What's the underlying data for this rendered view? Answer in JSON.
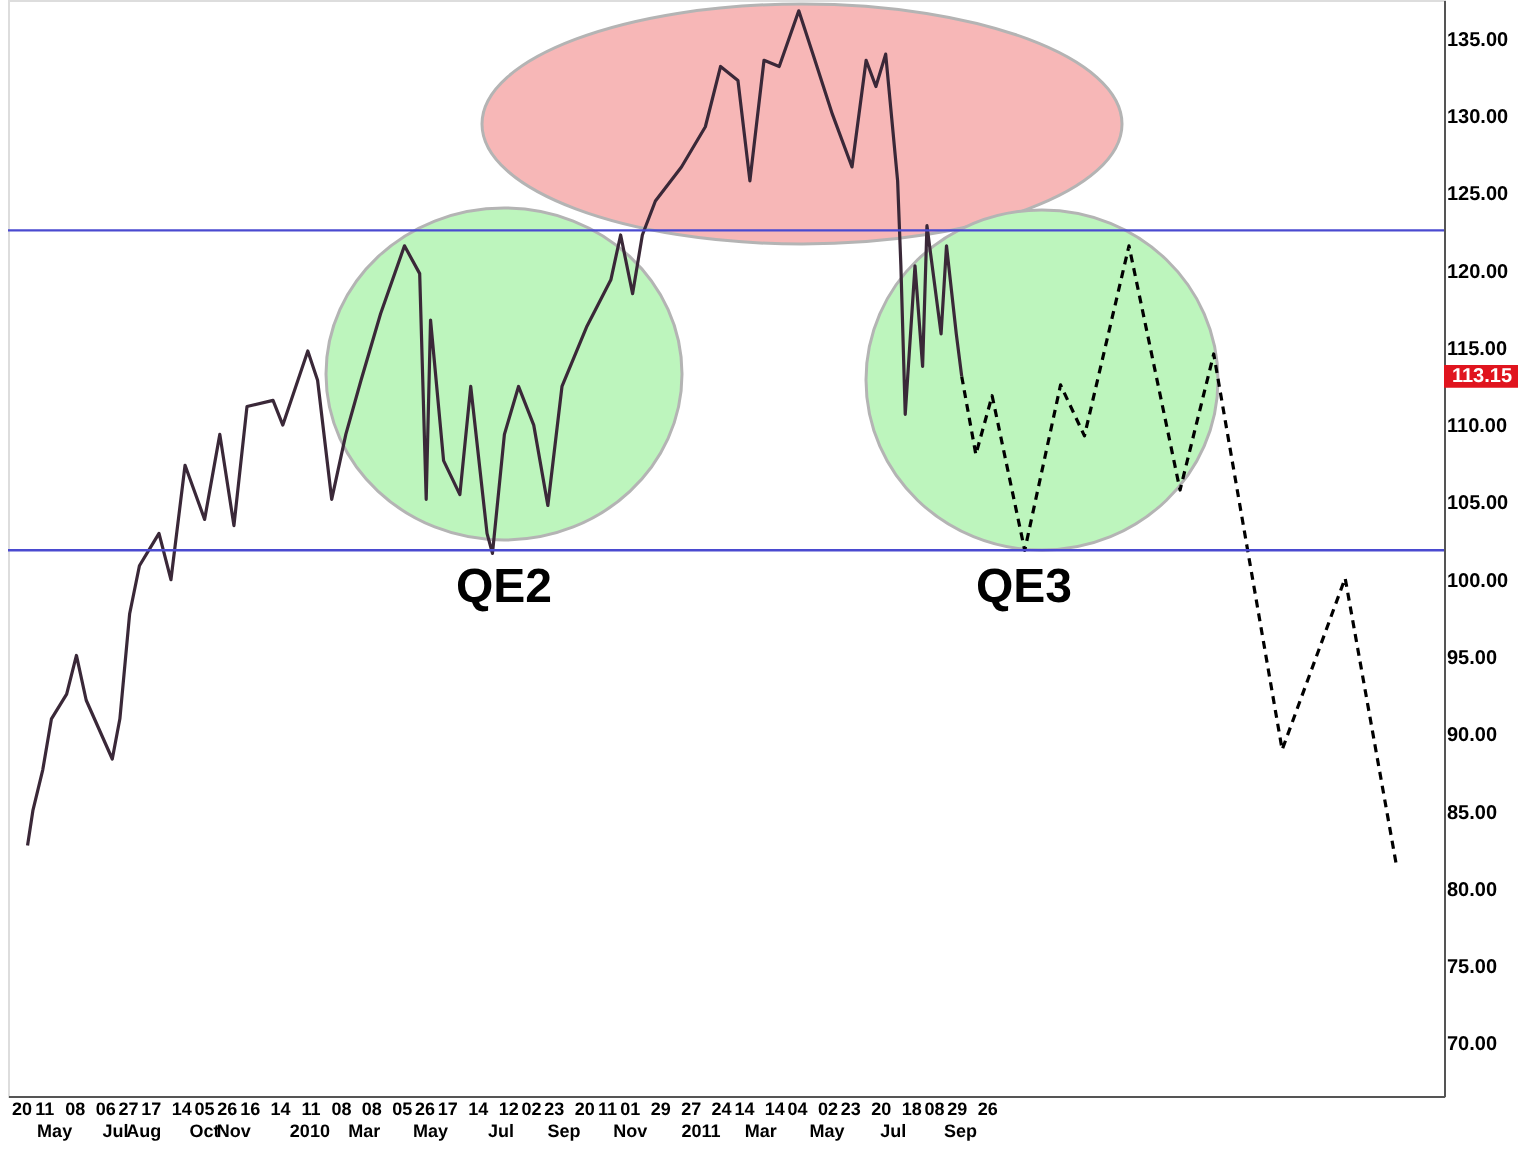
{
  "chart_data": {
    "type": "line",
    "xlim": [
      "2009-04-08",
      "2012-11-20"
    ],
    "ylim": [
      66.6,
      137.5
    ],
    "yticks": [
      {
        "value": 70,
        "label": "70.00"
      },
      {
        "value": 75,
        "label": "75.00"
      },
      {
        "value": 80,
        "label": "80.00"
      },
      {
        "value": 85,
        "label": "85.00"
      },
      {
        "value": 90,
        "label": "90.00"
      },
      {
        "value": 95,
        "label": "95.00"
      },
      {
        "value": 100,
        "label": "100.00"
      },
      {
        "value": 105,
        "label": "105.00"
      },
      {
        "value": 110,
        "label": "110.00"
      },
      {
        "value": 115,
        "label": "115.00"
      },
      {
        "value": 120,
        "label": "120.00"
      },
      {
        "value": 125,
        "label": "125.00"
      },
      {
        "value": 130,
        "label": "130.00"
      },
      {
        "value": 135,
        "label": "135.00"
      }
    ],
    "xticks": [
      {
        "value": "2009-04-20",
        "label": "20"
      },
      {
        "value": "2009-05-11",
        "label": "11"
      },
      {
        "value": "2009-06-08",
        "label": "08"
      },
      {
        "value": "2009-07-06",
        "label": "06"
      },
      {
        "value": "2009-07-27",
        "label": "27"
      },
      {
        "value": "2009-08-17",
        "label": "17"
      },
      {
        "value": "2009-09-14",
        "label": "14"
      },
      {
        "value": "2009-10-05",
        "label": "05"
      },
      {
        "value": "2009-10-26",
        "label": "26"
      },
      {
        "value": "2009-11-16",
        "label": "16"
      },
      {
        "value": "2009-12-14",
        "label": "14"
      },
      {
        "value": "2010-01-11",
        "label": "11"
      },
      {
        "value": "2010-02-08",
        "label": "08"
      },
      {
        "value": "2010-03-08",
        "label": "08"
      },
      {
        "value": "2010-04-05",
        "label": "05"
      },
      {
        "value": "2010-04-26",
        "label": "26"
      },
      {
        "value": "2010-05-17",
        "label": "17"
      },
      {
        "value": "2010-06-14",
        "label": "14"
      },
      {
        "value": "2010-07-12",
        "label": "12"
      },
      {
        "value": "2010-08-02",
        "label": "02"
      },
      {
        "value": "2010-08-23",
        "label": "23"
      },
      {
        "value": "2010-09-20",
        "label": "20"
      },
      {
        "value": "2010-10-11",
        "label": "11"
      },
      {
        "value": "2010-11-01",
        "label": "01"
      },
      {
        "value": "2010-11-29",
        "label": "29"
      },
      {
        "value": "2010-12-27",
        "label": "27"
      },
      {
        "value": "2011-01-24",
        "label": "24"
      },
      {
        "value": "2011-02-14",
        "label": "14"
      },
      {
        "value": "2011-03-14",
        "label": "14"
      },
      {
        "value": "2011-04-04",
        "label": "04"
      },
      {
        "value": "2011-05-02",
        "label": "02"
      },
      {
        "value": "2011-05-23",
        "label": "23"
      },
      {
        "value": "2011-06-20",
        "label": "20"
      },
      {
        "value": "2011-07-18",
        "label": "18"
      },
      {
        "value": "2011-08-08",
        "label": "08"
      },
      {
        "value": "2011-08-29",
        "label": "29"
      },
      {
        "value": "2011-09-26",
        "label": "26"
      }
    ],
    "x2lim": [
      "2009-04-08",
      "2012-11-20"
    ],
    "x2ticks": [
      {
        "value": "2009-05-20",
        "label": "May"
      },
      {
        "value": "2009-07-15",
        "label": "Jul"
      },
      {
        "value": "2009-08-10",
        "label": "Aug"
      },
      {
        "value": "2009-10-05",
        "label": "Oct"
      },
      {
        "value": "2009-11-01",
        "label": "Nov"
      },
      {
        "value": "2010-01-10",
        "label": "2010"
      },
      {
        "value": "2010-03-01",
        "label": "Mar"
      },
      {
        "value": "2010-05-01",
        "label": "May"
      },
      {
        "value": "2010-07-05",
        "label": "Jul"
      },
      {
        "value": "2010-09-01",
        "label": "Sep"
      },
      {
        "value": "2010-11-01",
        "label": "Nov"
      },
      {
        "value": "2011-01-05",
        "label": "2011"
      },
      {
        "value": "2011-03-01",
        "label": "Mar"
      },
      {
        "value": "2011-05-01",
        "label": "May"
      },
      {
        "value": "2011-07-01",
        "label": "Jul"
      },
      {
        "value": "2011-09-01",
        "label": "Sep"
      }
    ],
    "series": [
      {
        "type": "line",
        "color": "#3a2838",
        "x": [
          "2009-04-26",
          "2009-05-01",
          "2009-05-10",
          "2009-05-18",
          "2009-06-01",
          "2009-06-10",
          "2009-06-19",
          "2009-07-13",
          "2009-07-20",
          "2009-07-29",
          "2009-08-07",
          "2009-08-25",
          "2009-09-05",
          "2009-09-18",
          "2009-10-06",
          "2009-10-20",
          "2009-11-02",
          "2009-11-14",
          "2009-12-08",
          "2009-12-17",
          "2010-01-09",
          "2010-01-18",
          "2010-01-31",
          "2010-02-13",
          "2010-02-27",
          "2010-03-17",
          "2010-04-08",
          "2010-04-22",
          "2010-04-28",
          "2010-05-02",
          "2010-05-14",
          "2010-05-29",
          "2010-06-08",
          "2010-06-23",
          "2010-06-28",
          "2010-07-09",
          "2010-07-22",
          "2010-08-05",
          "2010-08-18",
          "2010-08-31",
          "2010-09-23",
          "2010-10-15",
          "2010-10-24",
          "2010-11-04",
          "2010-11-13",
          "2010-11-25",
          "2010-12-19",
          "2011-01-10",
          "2011-01-24",
          "2011-02-09",
          "2011-02-20",
          "2011-03-05",
          "2011-03-19",
          "2011-04-06",
          "2011-04-19",
          "2011-05-07",
          "2011-05-25",
          "2011-06-07",
          "2011-06-16",
          "2011-06-25",
          "2011-07-06",
          "2011-07-09",
          "2011-07-13",
          "2011-07-22",
          "2011-07-29",
          "2011-08-02",
          "2011-08-15",
          "2011-08-20",
          "2011-08-29",
          "2011-09-03"
        ],
        "values": [
          82.8,
          85.1,
          87.7,
          91,
          92.6,
          95.1,
          92.2,
          88.4,
          91,
          97.8,
          100.9,
          103,
          100,
          107.4,
          103.9,
          109.4,
          103.5,
          111.2,
          111.6,
          110,
          114.8,
          112.9,
          105.2,
          109.4,
          112.9,
          117.2,
          121.6,
          119.8,
          105.2,
          116.8,
          107.7,
          105.5,
          112.5,
          103,
          101.7,
          109.4,
          112.5,
          110,
          104.8,
          112.5,
          116.4,
          119.4,
          122.3,
          118.5,
          122.3,
          124.5,
          126.7,
          129.3,
          133.2,
          132.3,
          125.8,
          133.6,
          133.2,
          136.8,
          134,
          130.1,
          126.7,
          133.6,
          131.9,
          134,
          125.8,
          120.3,
          110.7,
          120.3,
          113.8,
          122.9,
          115.9,
          121.6,
          115.9,
          113.15
        ]
      },
      {
        "type": "line",
        "color": "#000000",
        "line_style": "dashed",
        "x": [
          "2011-09-03",
          "2011-09-16",
          "2011-10-01",
          "2011-10-31",
          "2011-12-03",
          "2011-12-25",
          "2012-02-04",
          "2012-03-22",
          "2012-04-22",
          "2012-06-24",
          "2012-08-21",
          "2012-10-07"
        ],
        "values": [
          113.15,
          108.1,
          111.9,
          101.9,
          112.6,
          109.3,
          121.6,
          105.8,
          114.6,
          89,
          100.1,
          81.6
        ]
      }
    ],
    "ref_lines": [
      {
        "axis": "y",
        "value": 122.6,
        "color": "#4a4ad0"
      },
      {
        "axis": "y",
        "value": 101.9,
        "color": "#4a4ad0"
      }
    ],
    "annotations": [
      "QE2",
      "QE3",
      {
        "text": "113.15",
        "y": 113.15
      }
    ]
  }
}
